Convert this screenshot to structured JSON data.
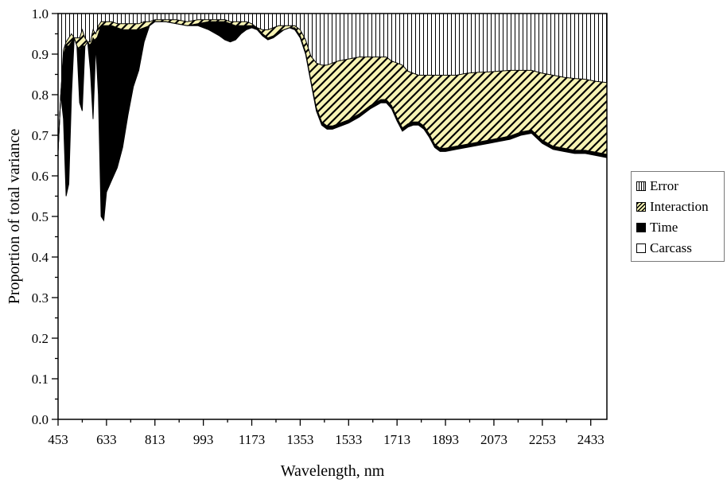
{
  "chart_data": {
    "type": "area",
    "stacked": true,
    "xlabel": "Wavelength, nm",
    "ylabel": "Proportion of total variance",
    "xlim": [
      453,
      2493
    ],
    "ylim": [
      0.0,
      1.0
    ],
    "xticks": [
      "453",
      "633",
      "813",
      "993",
      "1173",
      "1353",
      "1533",
      "1713",
      "1893",
      "2073",
      "2253",
      "2433"
    ],
    "yticks": [
      "0.0",
      "0.1",
      "0.2",
      "0.3",
      "0.4",
      "0.5",
      "0.6",
      "0.7",
      "0.8",
      "0.9",
      "1.0"
    ],
    "legend_position": "right",
    "series": [
      {
        "name": "Error",
        "fill": "vertical-hatch",
        "color": "#000000"
      },
      {
        "name": "Interaction",
        "fill": "diagonal-hatch",
        "color": "#f7f3b4"
      },
      {
        "name": "Time",
        "fill": "solid",
        "color": "#000000"
      },
      {
        "name": "Carcass",
        "fill": "solid",
        "color": "#ffffff"
      }
    ],
    "x": [
      453,
      463,
      473,
      483,
      493,
      503,
      513,
      523,
      533,
      543,
      553,
      563,
      573,
      583,
      593,
      603,
      613,
      623,
      633,
      653,
      673,
      693,
      713,
      733,
      753,
      773,
      793,
      813,
      853,
      893,
      933,
      973,
      1013,
      1053,
      1073,
      1093,
      1113,
      1133,
      1153,
      1173,
      1193,
      1213,
      1233,
      1253,
      1273,
      1293,
      1313,
      1333,
      1353,
      1373,
      1393,
      1413,
      1433,
      1453,
      1473,
      1493,
      1533,
      1573,
      1613,
      1653,
      1673,
      1693,
      1713,
      1733,
      1753,
      1773,
      1793,
      1813,
      1833,
      1853,
      1873,
      1893,
      1933,
      1973,
      2013,
      2053,
      2093,
      2133,
      2173,
      2213,
      2253,
      2293,
      2333,
      2373,
      2413,
      2453,
      2493
    ],
    "carcass": [
      0.66,
      0.8,
      0.74,
      0.55,
      0.58,
      0.8,
      0.94,
      0.92,
      0.78,
      0.76,
      0.92,
      0.93,
      0.86,
      0.74,
      0.92,
      0.8,
      0.5,
      0.49,
      0.56,
      0.59,
      0.62,
      0.67,
      0.75,
      0.82,
      0.86,
      0.93,
      0.97,
      0.98,
      0.98,
      0.975,
      0.97,
      0.97,
      0.96,
      0.945,
      0.935,
      0.93,
      0.935,
      0.95,
      0.96,
      0.965,
      0.96,
      0.945,
      0.935,
      0.94,
      0.95,
      0.96,
      0.965,
      0.96,
      0.94,
      0.9,
      0.83,
      0.76,
      0.725,
      0.715,
      0.715,
      0.72,
      0.73,
      0.745,
      0.765,
      0.78,
      0.78,
      0.765,
      0.735,
      0.71,
      0.72,
      0.725,
      0.725,
      0.715,
      0.695,
      0.67,
      0.66,
      0.66,
      0.665,
      0.67,
      0.675,
      0.68,
      0.685,
      0.69,
      0.7,
      0.705,
      0.68,
      0.665,
      0.66,
      0.655,
      0.655,
      0.65,
      0.645
    ],
    "time": [
      0.0,
      0.0,
      0.16,
      0.37,
      0.34,
      0.13,
      0.0,
      0.0,
      0.13,
      0.16,
      0.0,
      0.0,
      0.06,
      0.2,
      0.01,
      0.15,
      0.47,
      0.48,
      0.41,
      0.38,
      0.345,
      0.29,
      0.21,
      0.14,
      0.1,
      0.035,
      0.0,
      0.0,
      0.0,
      0.0,
      0.0,
      0.005,
      0.02,
      0.035,
      0.045,
      0.045,
      0.035,
      0.02,
      0.01,
      0.005,
      0.005,
      0.005,
      0.005,
      0.005,
      0.005,
      0.0,
      0.0,
      0.005,
      0.005,
      0.005,
      0.005,
      0.008,
      0.008,
      0.008,
      0.008,
      0.008,
      0.008,
      0.008,
      0.008,
      0.008,
      0.008,
      0.008,
      0.008,
      0.008,
      0.008,
      0.008,
      0.008,
      0.008,
      0.008,
      0.008,
      0.008,
      0.008,
      0.008,
      0.008,
      0.008,
      0.008,
      0.008,
      0.008,
      0.008,
      0.008,
      0.008,
      0.008,
      0.008,
      0.008,
      0.008,
      0.008,
      0.008
    ],
    "interaction": [
      0.0,
      0.0,
      0.01,
      0.01,
      0.02,
      0.02,
      0.0,
      0.02,
      0.03,
      0.04,
      0.02,
      0.0,
      0.01,
      0.02,
      0.02,
      0.02,
      0.01,
      0.01,
      0.01,
      0.01,
      0.01,
      0.015,
      0.015,
      0.015,
      0.015,
      0.015,
      0.01,
      0.005,
      0.005,
      0.01,
      0.01,
      0.01,
      0.005,
      0.005,
      0.005,
      0.005,
      0.01,
      0.01,
      0.01,
      0.005,
      0.0,
      0.01,
      0.02,
      0.02,
      0.015,
      0.01,
      0.005,
      0.005,
      0.015,
      0.03,
      0.06,
      0.11,
      0.14,
      0.15,
      0.155,
      0.155,
      0.15,
      0.14,
      0.12,
      0.105,
      0.105,
      0.11,
      0.135,
      0.155,
      0.13,
      0.12,
      0.115,
      0.125,
      0.145,
      0.17,
      0.18,
      0.18,
      0.175,
      0.175,
      0.172,
      0.168,
      0.165,
      0.162,
      0.152,
      0.147,
      0.165,
      0.175,
      0.175,
      0.177,
      0.175,
      0.175,
      0.177
    ],
    "error": [
      0.34,
      0.2,
      0.09,
      0.07,
      0.06,
      0.05,
      0.06,
      0.06,
      0.06,
      0.04,
      0.06,
      0.07,
      0.07,
      0.04,
      0.05,
      0.03,
      0.02,
      0.02,
      0.02,
      0.02,
      0.025,
      0.025,
      0.025,
      0.025,
      0.025,
      0.02,
      0.02,
      0.015,
      0.015,
      0.015,
      0.02,
      0.015,
      0.015,
      0.015,
      0.015,
      0.02,
      0.02,
      0.02,
      0.02,
      0.025,
      0.035,
      0.04,
      0.04,
      0.035,
      0.03,
      0.03,
      0.03,
      0.03,
      0.04,
      0.065,
      0.105,
      0.122,
      0.127,
      0.127,
      0.122,
      0.117,
      0.112,
      0.107,
      0.107,
      0.107,
      0.107,
      0.117,
      0.122,
      0.127,
      0.142,
      0.147,
      0.152,
      0.152,
      0.152,
      0.152,
      0.152,
      0.152,
      0.152,
      0.147,
      0.145,
      0.144,
      0.142,
      0.14,
      0.14,
      0.14,
      0.147,
      0.152,
      0.157,
      0.16,
      0.162,
      0.167,
      0.17
    ]
  }
}
